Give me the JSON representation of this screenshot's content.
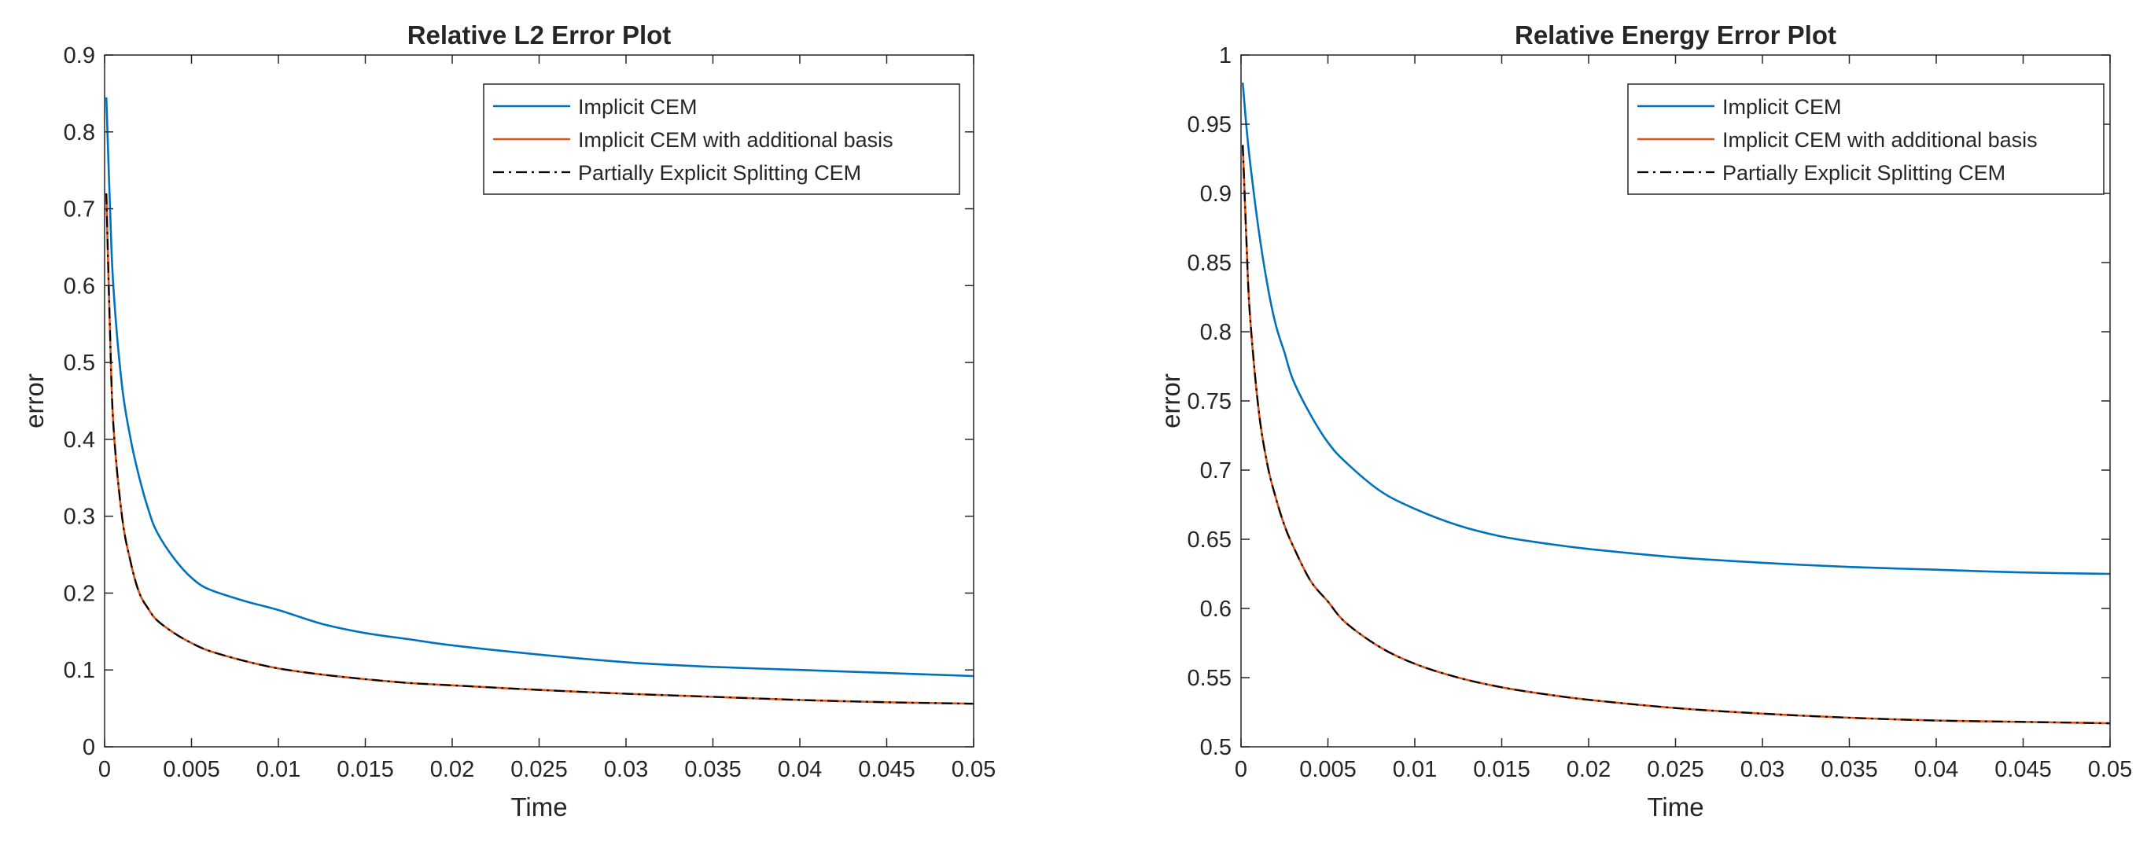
{
  "chart_data": [
    {
      "type": "line",
      "title": "Relative L2 Error Plot",
      "xlabel": "Time",
      "ylabel": "error",
      "xlim": [
        0,
        0.05
      ],
      "ylim": [
        0,
        0.9
      ],
      "xticks": [
        0,
        0.005,
        0.01,
        0.015,
        0.02,
        0.025,
        0.03,
        0.035,
        0.04,
        0.045,
        0.05
      ],
      "xtick_labels": [
        "0",
        "0.005",
        "0.01",
        "0.015",
        "0.02",
        "0.025",
        "0.03",
        "0.035",
        "0.04",
        "0.045",
        "0.05"
      ],
      "yticks": [
        0,
        0.1,
        0.2,
        0.3,
        0.4,
        0.5,
        0.6,
        0.7,
        0.8,
        0.9
      ],
      "ytick_labels": [
        "0",
        "0.1",
        "0.2",
        "0.3",
        "0.4",
        "0.5",
        "0.6",
        "0.7",
        "0.8",
        "0.9"
      ],
      "grid": false,
      "legend_position": "top-right",
      "series": [
        {
          "name": "Implicit CEM",
          "color": "#0072BD",
          "style": "solid",
          "x": [
            0.0001,
            0.0003,
            0.0005,
            0.001,
            0.0015,
            0.002,
            0.0025,
            0.003,
            0.004,
            0.005,
            0.006,
            0.008,
            0.01,
            0.0125,
            0.015,
            0.0175,
            0.02,
            0.025,
            0.03,
            0.035,
            0.04,
            0.045,
            0.05
          ],
          "y": [
            0.845,
            0.71,
            0.6,
            0.47,
            0.4,
            0.35,
            0.31,
            0.28,
            0.245,
            0.22,
            0.205,
            0.19,
            0.178,
            0.16,
            0.148,
            0.14,
            0.132,
            0.12,
            0.11,
            0.104,
            0.1,
            0.096,
            0.092
          ]
        },
        {
          "name": "Implicit CEM with additional basis",
          "color": "#D95319",
          "style": "solid",
          "x": [
            0.0001,
            0.0003,
            0.0005,
            0.001,
            0.0015,
            0.002,
            0.0025,
            0.003,
            0.004,
            0.005,
            0.006,
            0.008,
            0.01,
            0.0125,
            0.015,
            0.0175,
            0.02,
            0.025,
            0.03,
            0.035,
            0.04,
            0.045,
            0.05
          ],
          "y": [
            0.72,
            0.55,
            0.42,
            0.3,
            0.24,
            0.2,
            0.18,
            0.165,
            0.148,
            0.135,
            0.125,
            0.112,
            0.102,
            0.094,
            0.088,
            0.083,
            0.08,
            0.074,
            0.069,
            0.065,
            0.061,
            0.058,
            0.056
          ]
        },
        {
          "name": "Partially Explicit Splitting CEM",
          "color": "#000000",
          "style": "dashdot",
          "x": [
            0.0001,
            0.0003,
            0.0005,
            0.001,
            0.0015,
            0.002,
            0.0025,
            0.003,
            0.004,
            0.005,
            0.006,
            0.008,
            0.01,
            0.0125,
            0.015,
            0.0175,
            0.02,
            0.025,
            0.03,
            0.035,
            0.04,
            0.045,
            0.05
          ],
          "y": [
            0.72,
            0.55,
            0.42,
            0.3,
            0.24,
            0.2,
            0.18,
            0.165,
            0.148,
            0.135,
            0.125,
            0.112,
            0.102,
            0.094,
            0.088,
            0.083,
            0.08,
            0.074,
            0.069,
            0.065,
            0.061,
            0.058,
            0.056
          ]
        }
      ]
    },
    {
      "type": "line",
      "title": "Relative Energy Error Plot",
      "xlabel": "Time",
      "ylabel": "error",
      "xlim": [
        0,
        0.05
      ],
      "ylim": [
        0.5,
        1
      ],
      "xticks": [
        0,
        0.005,
        0.01,
        0.015,
        0.02,
        0.025,
        0.03,
        0.035,
        0.04,
        0.045,
        0.05
      ],
      "xtick_labels": [
        "0",
        "0.005",
        "0.01",
        "0.015",
        "0.02",
        "0.025",
        "0.03",
        "0.035",
        "0.04",
        "0.045",
        "0.05"
      ],
      "yticks": [
        0.5,
        0.55,
        0.6,
        0.65,
        0.7,
        0.75,
        0.8,
        0.85,
        0.9,
        0.95,
        1
      ],
      "ytick_labels": [
        "0.5",
        "0.55",
        "0.6",
        "0.65",
        "0.7",
        "0.75",
        "0.8",
        "0.85",
        "0.9",
        "0.95",
        "1"
      ],
      "grid": false,
      "legend_position": "top-right",
      "series": [
        {
          "name": "Implicit CEM",
          "color": "#0072BD",
          "style": "solid",
          "x": [
            0.0001,
            0.0003,
            0.0005,
            0.001,
            0.0015,
            0.002,
            0.0025,
            0.003,
            0.004,
            0.005,
            0.006,
            0.008,
            0.01,
            0.0125,
            0.015,
            0.0175,
            0.02,
            0.025,
            0.03,
            0.035,
            0.04,
            0.045,
            0.05
          ],
          "y": [
            0.98,
            0.95,
            0.925,
            0.875,
            0.835,
            0.805,
            0.785,
            0.765,
            0.74,
            0.72,
            0.706,
            0.685,
            0.672,
            0.66,
            0.652,
            0.647,
            0.643,
            0.637,
            0.633,
            0.63,
            0.628,
            0.626,
            0.625
          ]
        },
        {
          "name": "Implicit CEM with additional basis",
          "color": "#D95319",
          "style": "solid",
          "x": [
            0.0001,
            0.0003,
            0.0005,
            0.001,
            0.0015,
            0.002,
            0.0025,
            0.003,
            0.004,
            0.005,
            0.006,
            0.008,
            0.01,
            0.0125,
            0.015,
            0.0175,
            0.02,
            0.025,
            0.03,
            0.035,
            0.04,
            0.045,
            0.05
          ],
          "y": [
            0.935,
            0.87,
            0.815,
            0.745,
            0.705,
            0.68,
            0.66,
            0.645,
            0.62,
            0.605,
            0.59,
            0.572,
            0.56,
            0.55,
            0.543,
            0.538,
            0.534,
            0.528,
            0.524,
            0.521,
            0.519,
            0.518,
            0.517
          ]
        },
        {
          "name": "Partially Explicit Splitting CEM",
          "color": "#000000",
          "style": "dashdot",
          "x": [
            0.0001,
            0.0003,
            0.0005,
            0.001,
            0.0015,
            0.002,
            0.0025,
            0.003,
            0.004,
            0.005,
            0.006,
            0.008,
            0.01,
            0.0125,
            0.015,
            0.0175,
            0.02,
            0.025,
            0.03,
            0.035,
            0.04,
            0.045,
            0.05
          ],
          "y": [
            0.935,
            0.87,
            0.815,
            0.745,
            0.705,
            0.68,
            0.66,
            0.645,
            0.62,
            0.605,
            0.59,
            0.572,
            0.56,
            0.55,
            0.543,
            0.538,
            0.534,
            0.528,
            0.524,
            0.521,
            0.519,
            0.518,
            0.517
          ]
        }
      ]
    }
  ]
}
